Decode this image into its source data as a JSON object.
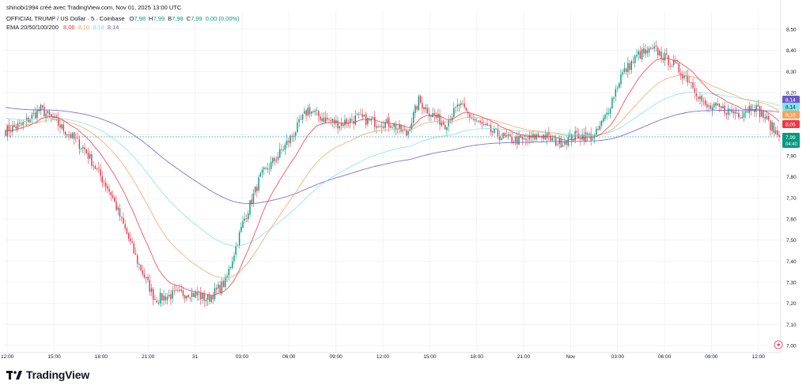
{
  "caption": "shinobi1994 créé avec TradingView.com, Nov 01, 2025 13:00 UTC",
  "symbol_line": "OFFICIAL TRUMP / US Dollar · 5 · Coinbase",
  "ohlc": [
    {
      "k": "O",
      "v": "7,98"
    },
    {
      "k": "H",
      "v": "7,99"
    },
    {
      "k": "B",
      "v": "7,98"
    },
    {
      "k": "C",
      "v": "7,99"
    },
    {
      "k": "",
      "v": "0,00 (0,00%)"
    }
  ],
  "ema_label": "EMA 20/50/100/200",
  "ema_values": [
    "8,06",
    "8,10",
    "8,14",
    "8,14"
  ],
  "brand": "TradingView",
  "colors": {
    "up": "#089981",
    "down": "#f23645",
    "ema20": "#f23645",
    "ema50": "#f7a35c",
    "ema100": "#7fe3f0",
    "ema200": "#6a5acd",
    "last": "#089981"
  },
  "chart_data": {
    "type": "candlestick",
    "y_ticks": [
      "8,50",
      "8,40",
      "8,30",
      "8,20",
      "8,10",
      "8,00",
      "7,90",
      "7,80",
      "7,70",
      "7,60",
      "7,50",
      "7,40",
      "7,30",
      "7,20",
      "7,10",
      "7,00"
    ],
    "ylim": [
      7.0,
      8.5
    ],
    "x_ticks": [
      "12:00",
      "15:00",
      "18:00",
      "21:00",
      "31",
      "03:00",
      "06:00",
      "09:00",
      "12:00",
      "15:00",
      "18:00",
      "21:00",
      "Nov",
      "03:00",
      "06:00",
      "09:00",
      "12:00"
    ],
    "anchors": [
      [
        0,
        8.02
      ],
      [
        10,
        8.05
      ],
      [
        20,
        8.12
      ],
      [
        30,
        8.05
      ],
      [
        45,
        7.93
      ],
      [
        60,
        7.72
      ],
      [
        75,
        7.4
      ],
      [
        85,
        7.22
      ],
      [
        95,
        7.24
      ],
      [
        105,
        7.25
      ],
      [
        115,
        7.22
      ],
      [
        125,
        7.3
      ],
      [
        135,
        7.58
      ],
      [
        145,
        7.8
      ],
      [
        155,
        7.9
      ],
      [
        165,
        8.02
      ],
      [
        172,
        8.12
      ],
      [
        180,
        8.08
      ],
      [
        190,
        8.05
      ],
      [
        200,
        8.08
      ],
      [
        210,
        8.06
      ],
      [
        220,
        8.05
      ],
      [
        228,
        8.0
      ],
      [
        235,
        8.16
      ],
      [
        242,
        8.1
      ],
      [
        250,
        8.05
      ],
      [
        258,
        8.14
      ],
      [
        265,
        8.08
      ],
      [
        275,
        8.02
      ],
      [
        285,
        7.98
      ],
      [
        295,
        7.97
      ],
      [
        305,
        8.0
      ],
      [
        315,
        7.96
      ],
      [
        325,
        8.0
      ],
      [
        335,
        7.99
      ],
      [
        342,
        8.1
      ],
      [
        350,
        8.28
      ],
      [
        360,
        8.38
      ],
      [
        370,
        8.4
      ],
      [
        380,
        8.33
      ],
      [
        390,
        8.25
      ],
      [
        398,
        8.13
      ],
      [
        408,
        8.12
      ],
      [
        418,
        8.1
      ],
      [
        425,
        8.14
      ],
      [
        432,
        8.08
      ],
      [
        440,
        7.99
      ]
    ],
    "ema_last": {
      "ema20": 8.06,
      "ema50": 8.1,
      "ema100": 8.14,
      "ema200": 8.14
    },
    "last": {
      "price": "7,99",
      "countdown": "04:40"
    }
  }
}
